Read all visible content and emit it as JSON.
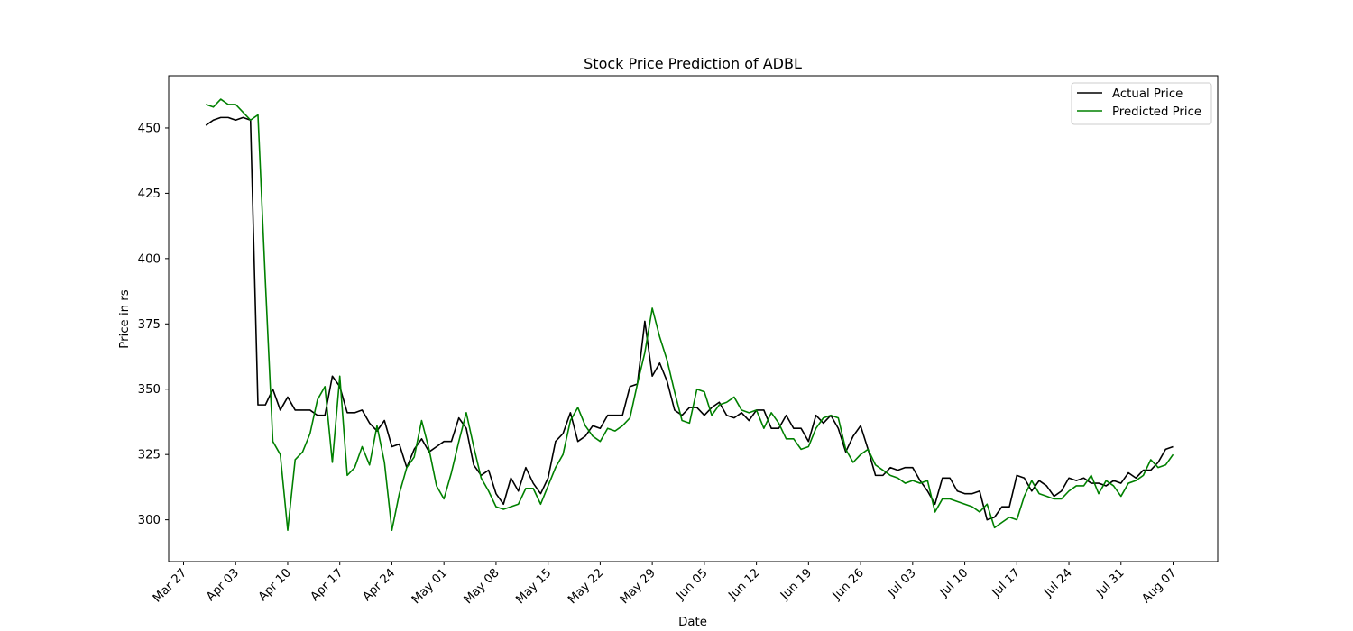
{
  "chart_data": {
    "type": "line",
    "title": "Stock Price Prediction of ADBL",
    "xlabel": "Date",
    "ylabel": "Price in rs",
    "x_ticks": [
      "Mar 27",
      "Apr 03",
      "Apr 10",
      "Apr 17",
      "Apr 24",
      "May 01",
      "May 08",
      "May 15",
      "May 22",
      "May 29",
      "Jun 05",
      "Jun 12",
      "Jun 19",
      "Jun 26",
      "Jul 03",
      "Jul 10",
      "Jul 17",
      "Jul 24",
      "Jul 31",
      "Aug 07"
    ],
    "y_ticks": [
      300,
      325,
      350,
      375,
      400,
      425,
      450
    ],
    "xlim": [
      "2023-03-25",
      "2023-08-13"
    ],
    "ylim": [
      284,
      470
    ],
    "grid": false,
    "legend_position": "upper right",
    "series": [
      {
        "name": "Actual Price",
        "color": "#000000",
        "points": [
          [
            "2023-03-30",
            451
          ],
          [
            "2023-03-31",
            453
          ],
          [
            "2023-04-01",
            454
          ],
          [
            "2023-04-02",
            454
          ],
          [
            "2023-04-03",
            453
          ],
          [
            "2023-04-04",
            454
          ],
          [
            "2023-04-05",
            453
          ],
          [
            "2023-04-06",
            344
          ],
          [
            "2023-04-07",
            344
          ],
          [
            "2023-04-08",
            350
          ],
          [
            "2023-04-09",
            342
          ],
          [
            "2023-04-10",
            347
          ],
          [
            "2023-04-11",
            342
          ],
          [
            "2023-04-12",
            342
          ],
          [
            "2023-04-13",
            342
          ],
          [
            "2023-04-14",
            340
          ],
          [
            "2023-04-15",
            340
          ],
          [
            "2023-04-16",
            355
          ],
          [
            "2023-04-17",
            351
          ],
          [
            "2023-04-18",
            341
          ],
          [
            "2023-04-19",
            341
          ],
          [
            "2023-04-20",
            342
          ],
          [
            "2023-04-21",
            337
          ],
          [
            "2023-04-22",
            334
          ],
          [
            "2023-04-23",
            338
          ],
          [
            "2023-04-24",
            328
          ],
          [
            "2023-04-25",
            329
          ],
          [
            "2023-04-26",
            320
          ],
          [
            "2023-04-27",
            327
          ],
          [
            "2023-04-28",
            331
          ],
          [
            "2023-04-29",
            326
          ],
          [
            "2023-04-30",
            328
          ],
          [
            "2023-05-01",
            330
          ],
          [
            "2023-05-02",
            330
          ],
          [
            "2023-05-03",
            339
          ],
          [
            "2023-05-04",
            335
          ],
          [
            "2023-05-05",
            321
          ],
          [
            "2023-05-06",
            317
          ],
          [
            "2023-05-07",
            319
          ],
          [
            "2023-05-08",
            310
          ],
          [
            "2023-05-09",
            306
          ],
          [
            "2023-05-10",
            316
          ],
          [
            "2023-05-11",
            311
          ],
          [
            "2023-05-12",
            320
          ],
          [
            "2023-05-13",
            314
          ],
          [
            "2023-05-14",
            310
          ],
          [
            "2023-05-15",
            316
          ],
          [
            "2023-05-16",
            330
          ],
          [
            "2023-05-17",
            333
          ],
          [
            "2023-05-18",
            341
          ],
          [
            "2023-05-19",
            330
          ],
          [
            "2023-05-20",
            332
          ],
          [
            "2023-05-21",
            336
          ],
          [
            "2023-05-22",
            335
          ],
          [
            "2023-05-23",
            340
          ],
          [
            "2023-05-24",
            340
          ],
          [
            "2023-05-25",
            340
          ],
          [
            "2023-05-26",
            351
          ],
          [
            "2023-05-27",
            352
          ],
          [
            "2023-05-28",
            376
          ],
          [
            "2023-05-29",
            355
          ],
          [
            "2023-05-30",
            360
          ],
          [
            "2023-05-31",
            353
          ],
          [
            "2023-06-01",
            342
          ],
          [
            "2023-06-02",
            340
          ],
          [
            "2023-06-03",
            343
          ],
          [
            "2023-06-04",
            343
          ],
          [
            "2023-06-05",
            340
          ],
          [
            "2023-06-06",
            343
          ],
          [
            "2023-06-07",
            345
          ],
          [
            "2023-06-08",
            340
          ],
          [
            "2023-06-09",
            339
          ],
          [
            "2023-06-10",
            341
          ],
          [
            "2023-06-11",
            338
          ],
          [
            "2023-06-12",
            342
          ],
          [
            "2023-06-13",
            342
          ],
          [
            "2023-06-14",
            335
          ],
          [
            "2023-06-15",
            335
          ],
          [
            "2023-06-16",
            340
          ],
          [
            "2023-06-17",
            335
          ],
          [
            "2023-06-18",
            335
          ],
          [
            "2023-06-19",
            330
          ],
          [
            "2023-06-20",
            340
          ],
          [
            "2023-06-21",
            337
          ],
          [
            "2023-06-22",
            340
          ],
          [
            "2023-06-23",
            335
          ],
          [
            "2023-06-24",
            326
          ],
          [
            "2023-06-25",
            332
          ],
          [
            "2023-06-26",
            336
          ],
          [
            "2023-06-27",
            327
          ],
          [
            "2023-06-28",
            317
          ],
          [
            "2023-06-29",
            317
          ],
          [
            "2023-06-30",
            320
          ],
          [
            "2023-07-01",
            319
          ],
          [
            "2023-07-02",
            320
          ],
          [
            "2023-07-03",
            320
          ],
          [
            "2023-07-04",
            315
          ],
          [
            "2023-07-05",
            311
          ],
          [
            "2023-07-06",
            306
          ],
          [
            "2023-07-07",
            316
          ],
          [
            "2023-07-08",
            316
          ],
          [
            "2023-07-09",
            311
          ],
          [
            "2023-07-10",
            310
          ],
          [
            "2023-07-11",
            310
          ],
          [
            "2023-07-12",
            311
          ],
          [
            "2023-07-13",
            300
          ],
          [
            "2023-07-14",
            301
          ],
          [
            "2023-07-15",
            305
          ],
          [
            "2023-07-16",
            305
          ],
          [
            "2023-07-17",
            317
          ],
          [
            "2023-07-18",
            316
          ],
          [
            "2023-07-19",
            311
          ],
          [
            "2023-07-20",
            315
          ],
          [
            "2023-07-21",
            313
          ],
          [
            "2023-07-22",
            309
          ],
          [
            "2023-07-23",
            311
          ],
          [
            "2023-07-24",
            316
          ],
          [
            "2023-07-25",
            315
          ],
          [
            "2023-07-26",
            316
          ],
          [
            "2023-07-27",
            314
          ],
          [
            "2023-07-28",
            314
          ],
          [
            "2023-07-29",
            313
          ],
          [
            "2023-07-30",
            315
          ],
          [
            "2023-07-31",
            314
          ],
          [
            "2023-08-01",
            318
          ],
          [
            "2023-08-02",
            316
          ],
          [
            "2023-08-03",
            319
          ],
          [
            "2023-08-04",
            319
          ],
          [
            "2023-08-05",
            322
          ],
          [
            "2023-08-06",
            327
          ],
          [
            "2023-08-07",
            328
          ]
        ]
      },
      {
        "name": "Predicted Price",
        "color": "#008000",
        "points": [
          [
            "2023-03-30",
            459
          ],
          [
            "2023-03-31",
            458
          ],
          [
            "2023-04-01",
            461
          ],
          [
            "2023-04-02",
            459
          ],
          [
            "2023-04-03",
            459
          ],
          [
            "2023-04-04",
            456
          ],
          [
            "2023-04-05",
            453
          ],
          [
            "2023-04-06",
            455
          ],
          [
            "2023-04-07",
            391
          ],
          [
            "2023-04-08",
            330
          ],
          [
            "2023-04-09",
            325
          ],
          [
            "2023-04-10",
            296
          ],
          [
            "2023-04-11",
            323
          ],
          [
            "2023-04-12",
            326
          ],
          [
            "2023-04-13",
            333
          ],
          [
            "2023-04-14",
            346
          ],
          [
            "2023-04-15",
            351
          ],
          [
            "2023-04-16",
            322
          ],
          [
            "2023-04-17",
            355
          ],
          [
            "2023-04-18",
            317
          ],
          [
            "2023-04-19",
            320
          ],
          [
            "2023-04-20",
            328
          ],
          [
            "2023-04-21",
            321
          ],
          [
            "2023-04-22",
            336
          ],
          [
            "2023-04-23",
            322
          ],
          [
            "2023-04-24",
            296
          ],
          [
            "2023-04-25",
            310
          ],
          [
            "2023-04-26",
            320
          ],
          [
            "2023-04-27",
            324
          ],
          [
            "2023-04-28",
            338
          ],
          [
            "2023-04-29",
            327
          ],
          [
            "2023-04-30",
            313
          ],
          [
            "2023-05-01",
            308
          ],
          [
            "2023-05-02",
            318
          ],
          [
            "2023-05-03",
            330
          ],
          [
            "2023-05-04",
            341
          ],
          [
            "2023-05-05",
            328
          ],
          [
            "2023-05-06",
            316
          ],
          [
            "2023-05-07",
            311
          ],
          [
            "2023-05-08",
            305
          ],
          [
            "2023-05-09",
            304
          ],
          [
            "2023-05-10",
            305
          ],
          [
            "2023-05-11",
            306
          ],
          [
            "2023-05-12",
            312
          ],
          [
            "2023-05-13",
            312
          ],
          [
            "2023-05-14",
            306
          ],
          [
            "2023-05-15",
            313
          ],
          [
            "2023-05-16",
            320
          ],
          [
            "2023-05-17",
            325
          ],
          [
            "2023-05-18",
            338
          ],
          [
            "2023-05-19",
            343
          ],
          [
            "2023-05-20",
            336
          ],
          [
            "2023-05-21",
            332
          ],
          [
            "2023-05-22",
            330
          ],
          [
            "2023-05-23",
            335
          ],
          [
            "2023-05-24",
            334
          ],
          [
            "2023-05-25",
            336
          ],
          [
            "2023-05-26",
            339
          ],
          [
            "2023-05-27",
            352
          ],
          [
            "2023-05-28",
            364
          ],
          [
            "2023-05-29",
            381
          ],
          [
            "2023-05-30",
            370
          ],
          [
            "2023-05-31",
            361
          ],
          [
            "2023-06-01",
            349
          ],
          [
            "2023-06-02",
            338
          ],
          [
            "2023-06-03",
            337
          ],
          [
            "2023-06-04",
            350
          ],
          [
            "2023-06-05",
            349
          ],
          [
            "2023-06-06",
            340
          ],
          [
            "2023-06-07",
            344
          ],
          [
            "2023-06-08",
            345
          ],
          [
            "2023-06-09",
            347
          ],
          [
            "2023-06-10",
            342
          ],
          [
            "2023-06-11",
            341
          ],
          [
            "2023-06-12",
            342
          ],
          [
            "2023-06-13",
            335
          ],
          [
            "2023-06-14",
            341
          ],
          [
            "2023-06-15",
            337
          ],
          [
            "2023-06-16",
            331
          ],
          [
            "2023-06-17",
            331
          ],
          [
            "2023-06-18",
            327
          ],
          [
            "2023-06-19",
            328
          ],
          [
            "2023-06-20",
            335
          ],
          [
            "2023-06-21",
            339
          ],
          [
            "2023-06-22",
            340
          ],
          [
            "2023-06-23",
            339
          ],
          [
            "2023-06-24",
            327
          ],
          [
            "2023-06-25",
            322
          ],
          [
            "2023-06-26",
            325
          ],
          [
            "2023-06-27",
            327
          ],
          [
            "2023-06-28",
            321
          ],
          [
            "2023-06-29",
            319
          ],
          [
            "2023-06-30",
            317
          ],
          [
            "2023-07-01",
            316
          ],
          [
            "2023-07-02",
            314
          ],
          [
            "2023-07-03",
            315
          ],
          [
            "2023-07-04",
            314
          ],
          [
            "2023-07-05",
            315
          ],
          [
            "2023-07-06",
            303
          ],
          [
            "2023-07-07",
            308
          ],
          [
            "2023-07-08",
            308
          ],
          [
            "2023-07-09",
            307
          ],
          [
            "2023-07-10",
            306
          ],
          [
            "2023-07-11",
            305
          ],
          [
            "2023-07-12",
            303
          ],
          [
            "2023-07-13",
            306
          ],
          [
            "2023-07-14",
            297
          ],
          [
            "2023-07-15",
            299
          ],
          [
            "2023-07-16",
            301
          ],
          [
            "2023-07-17",
            300
          ],
          [
            "2023-07-18",
            309
          ],
          [
            "2023-07-19",
            315
          ],
          [
            "2023-07-20",
            310
          ],
          [
            "2023-07-21",
            309
          ],
          [
            "2023-07-22",
            308
          ],
          [
            "2023-07-23",
            308
          ],
          [
            "2023-07-24",
            311
          ],
          [
            "2023-07-25",
            313
          ],
          [
            "2023-07-26",
            313
          ],
          [
            "2023-07-27",
            317
          ],
          [
            "2023-07-28",
            310
          ],
          [
            "2023-07-29",
            315
          ],
          [
            "2023-07-30",
            313
          ],
          [
            "2023-07-31",
            309
          ],
          [
            "2023-08-01",
            314
          ],
          [
            "2023-08-02",
            315
          ],
          [
            "2023-08-03",
            317
          ],
          [
            "2023-08-04",
            323
          ],
          [
            "2023-08-05",
            320
          ],
          [
            "2023-08-06",
            321
          ],
          [
            "2023-08-07",
            325
          ]
        ]
      }
    ]
  }
}
